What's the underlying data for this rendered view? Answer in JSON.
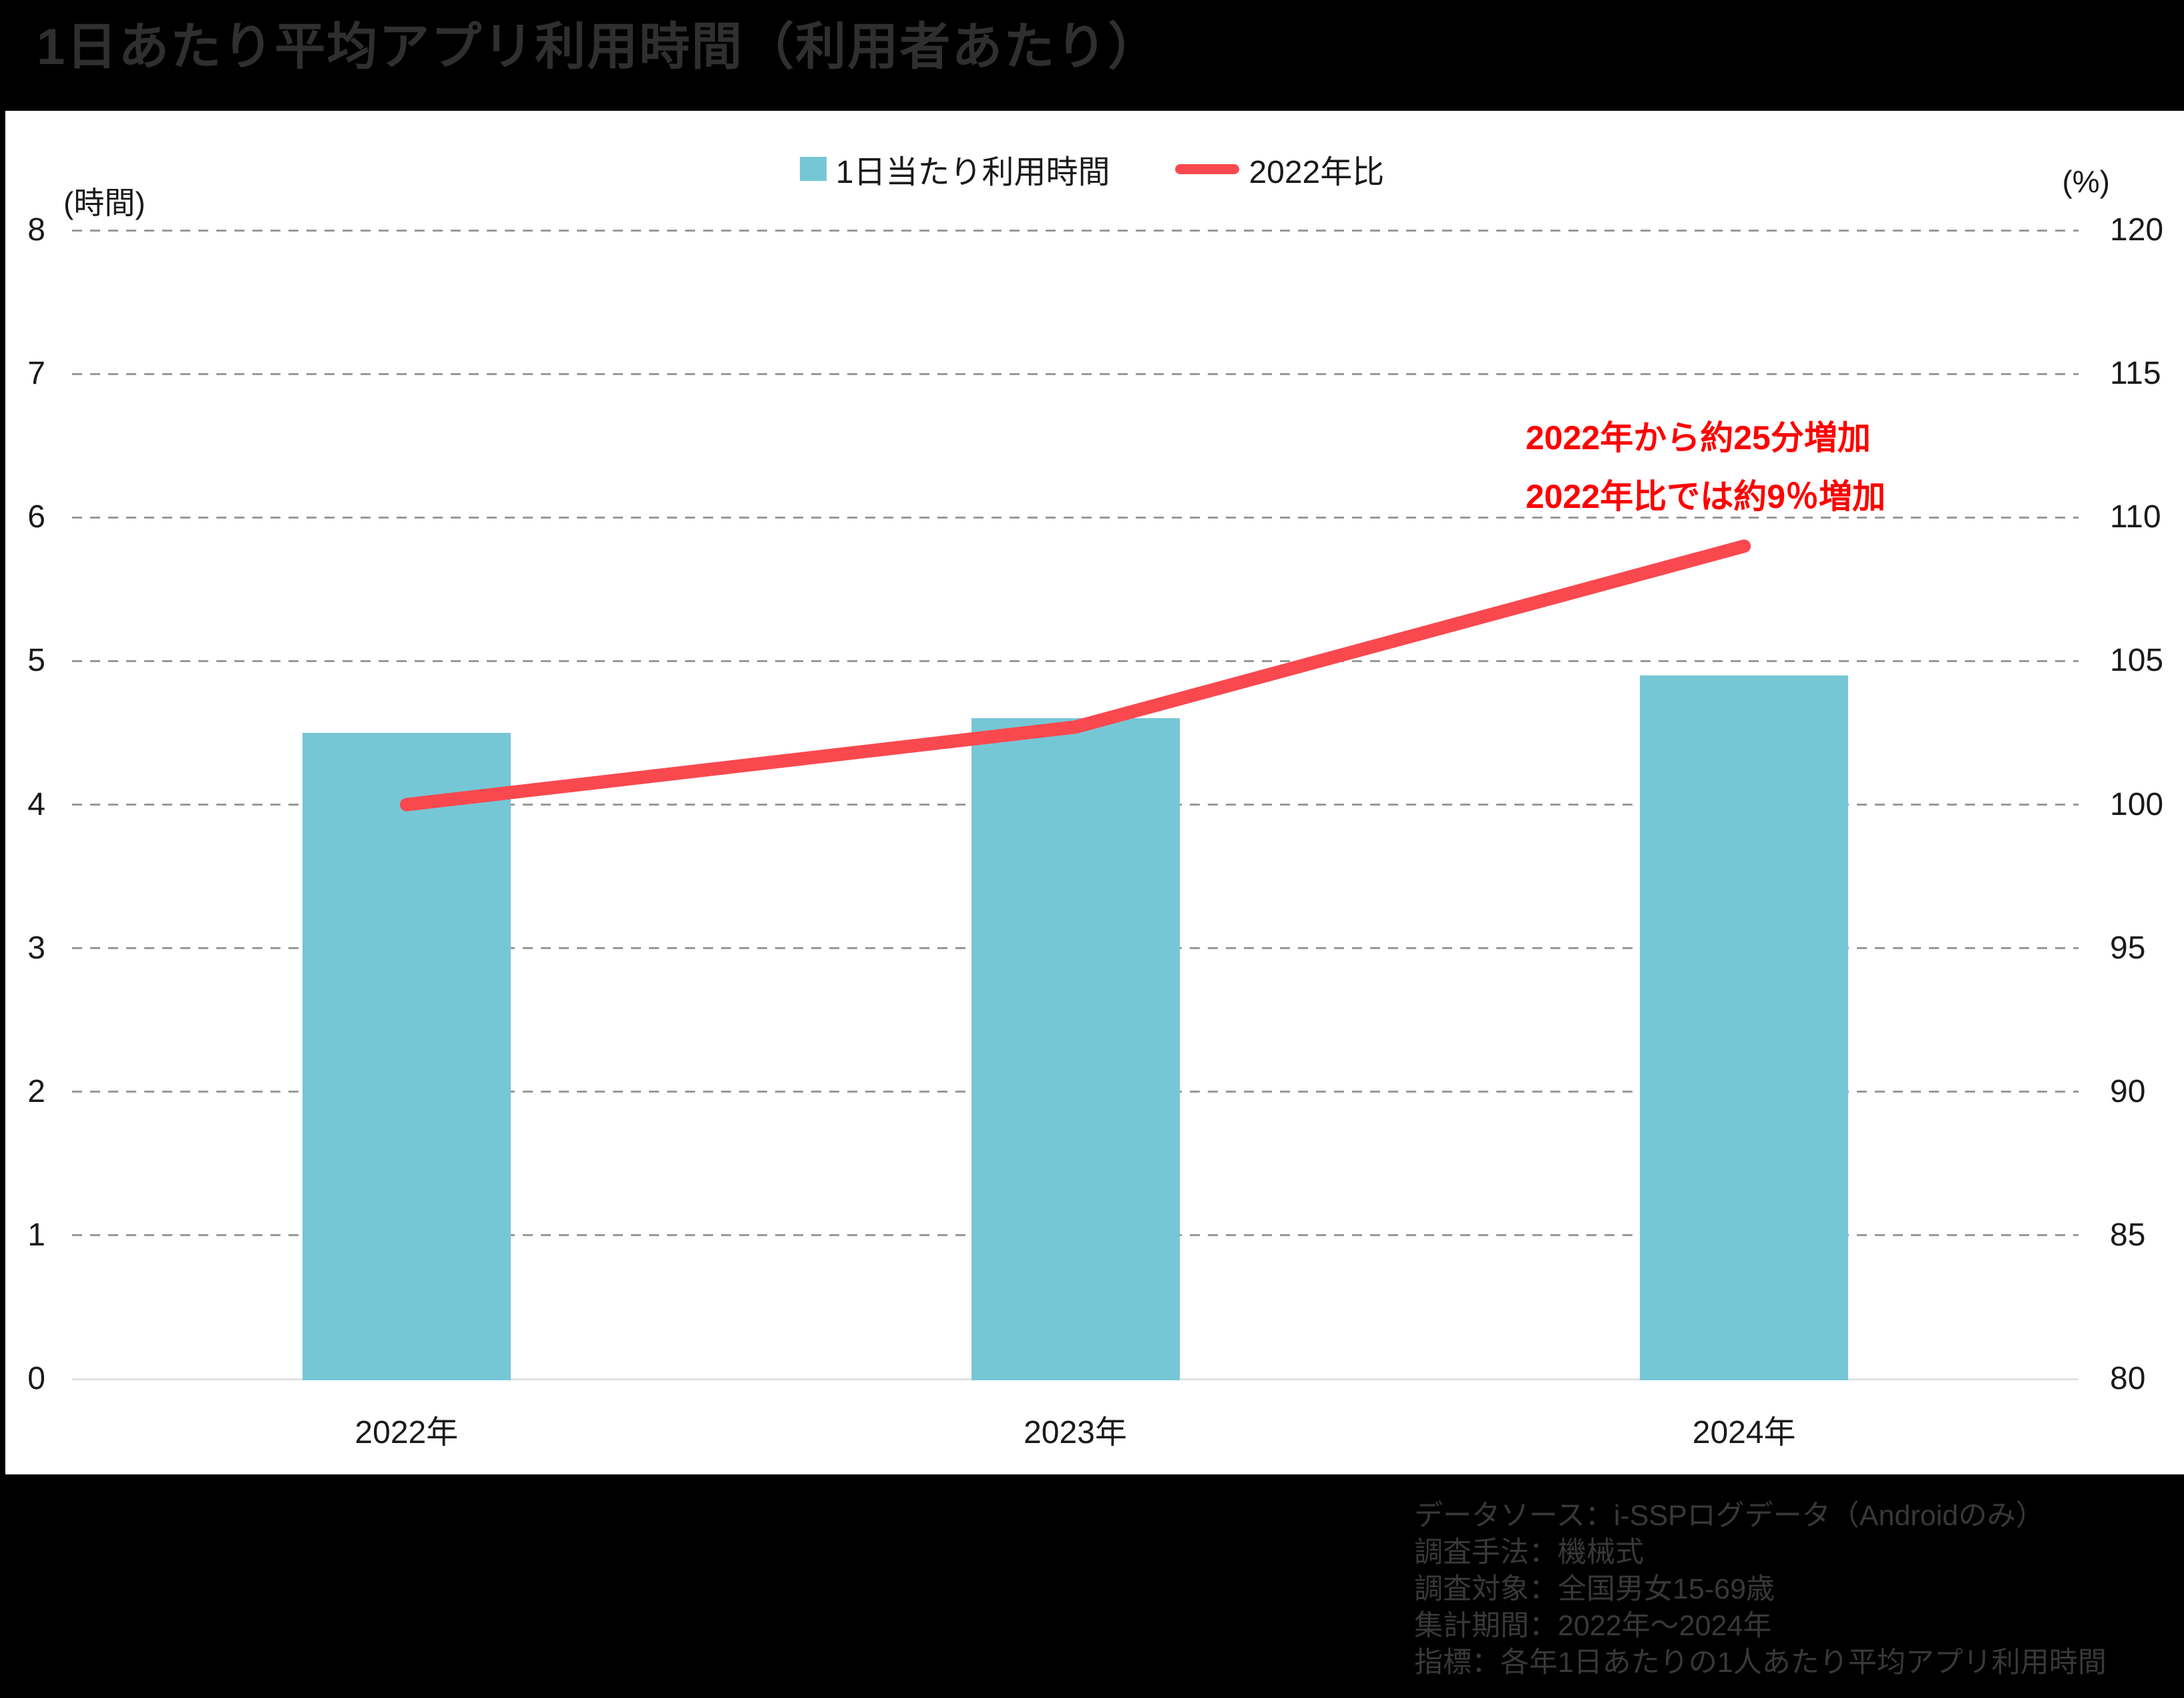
{
  "title": "1日あたり平均アプリ利用時間（利用者あたり）",
  "legend": {
    "bar_label": "1日当たり利用時間",
    "line_label": "2022年比"
  },
  "axes": {
    "left_unit": "(時間)",
    "right_unit": "(%)"
  },
  "annotation": {
    "line1": "2022年から約25分増加",
    "line2": "2022年比では約9％増加"
  },
  "footer": {
    "lines": [
      "データソース：i-SSPログデータ（Androidのみ）",
      "調査手法：機械式",
      "調査対象：全国男女15-69歳",
      "集計期間：2022年～2024年",
      "指標：各年1日あたりの1人あたり平均アプリ利用時間"
    ]
  },
  "colors": {
    "bar": "#76c7d6",
    "line": "#f9494f",
    "annotation": "#ff0000",
    "grid": "#999999",
    "baseline": "#e2e2e2",
    "background": "#000000",
    "panel": "#ffffff",
    "title_text": "#2f2f2f",
    "footer_text": "#383838",
    "tick_text": "#1a1a1a"
  },
  "chart_data": {
    "type": "bar",
    "subtype": "bar+line combo",
    "title": "1日あたり平均アプリ利用時間（利用者あたり）",
    "categories": [
      "2022年",
      "2023年",
      "2024年"
    ],
    "series": [
      {
        "name": "1日当たり利用時間",
        "type": "bar",
        "axis": "left",
        "unit": "時間",
        "values": [
          4.5,
          4.6,
          4.9
        ]
      },
      {
        "name": "2022年比",
        "type": "line",
        "axis": "right",
        "unit": "%",
        "values": [
          100,
          102.7,
          109
        ]
      }
    ],
    "left_axis": {
      "label": "(時間)",
      "min": 0,
      "max": 8,
      "step": 1,
      "ticks": [
        0,
        1,
        2,
        3,
        4,
        5,
        6,
        7,
        8
      ]
    },
    "right_axis": {
      "label": "(%)",
      "min": 80,
      "max": 120,
      "step": 5,
      "ticks": [
        80,
        85,
        90,
        95,
        100,
        105,
        110,
        115,
        120
      ]
    },
    "grid": "horizontal dashed, solid zero baseline",
    "legend_position": "top-center",
    "annotations": [
      "2022年から約25分増加",
      "2022年比では約9％増加"
    ]
  }
}
